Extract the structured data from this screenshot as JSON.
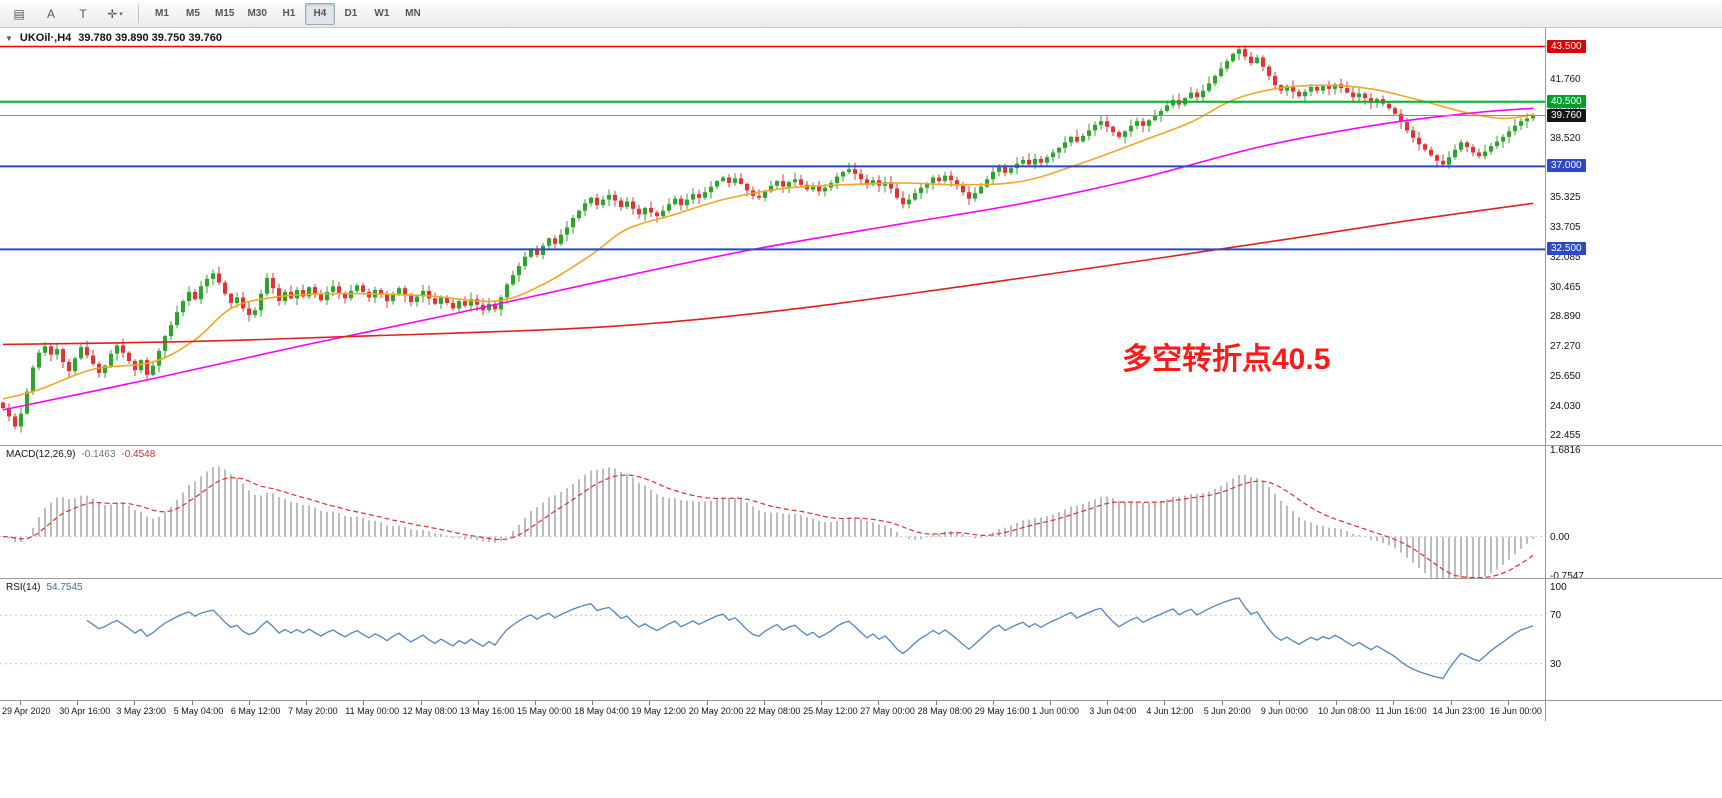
{
  "toolbar": {
    "icons": [
      {
        "name": "chart-list-icon",
        "glyph": "▤"
      },
      {
        "name": "text-tool-icon",
        "glyph": "A"
      },
      {
        "name": "template-tool-icon",
        "glyph": "T"
      },
      {
        "name": "crosshair-tool-icon",
        "glyph": "✛",
        "caret": "▾"
      }
    ],
    "timeframes": [
      "M1",
      "M5",
      "M15",
      "M30",
      "H1",
      "H4",
      "D1",
      "W1",
      "MN"
    ],
    "active_timeframe": "H4"
  },
  "chart_header": {
    "collapse_glyph": "▼",
    "symbol": "UKOil·,H4",
    "ohlc": "39.780 39.890 39.750 39.760"
  },
  "annotation": {
    "text": "多空转折点40.5",
    "color": "#FF1A1A"
  },
  "macd_panel": {
    "label": "MACD(12,26,9)",
    "value_main": "-0.1463",
    "value_signal": "-0.4548",
    "axis": [
      {
        "value": 1.6816,
        "label": "1.6816"
      },
      {
        "value": 0,
        "label": "0.00"
      },
      {
        "value": -0.7547,
        "label": "-0.7547"
      }
    ],
    "range": [
      -0.8,
      1.75
    ],
    "histogram_color": "#BDBDBD",
    "signal_color": "#E03030"
  },
  "rsi_panel": {
    "label": "RSI(14)",
    "value": "54.7545",
    "axis": [
      {
        "value": 100,
        "label": "100"
      },
      {
        "value": 70,
        "label": "70"
      },
      {
        "value": 30,
        "label": "30"
      }
    ],
    "levels": [
      30,
      70
    ],
    "line_color": "#4E86C8",
    "range": [
      0,
      100
    ]
  },
  "chart_data": {
    "type": "candlestick",
    "symbol": "UKOil",
    "timeframe": "H4",
    "title": "UKOil·,H4 39.780 39.890 39.750 39.760",
    "price_range": [
      21.9,
      44.5
    ],
    "up_color": "#2DA52D",
    "down_color": "#E33232",
    "closes": [
      23.9,
      23.45,
      22.9,
      23.6,
      24.8,
      26.1,
      26.9,
      27.25,
      26.8,
      27.1,
      26.4,
      25.9,
      26.6,
      27.2,
      26.75,
      26.3,
      25.8,
      26.2,
      26.85,
      27.3,
      26.9,
      26.45,
      25.95,
      26.5,
      25.7,
      26.2,
      27.0,
      27.8,
      28.4,
      29.1,
      29.7,
      30.2,
      29.8,
      30.5,
      30.9,
      31.2,
      30.7,
      30.1,
      29.6,
      29.9,
      29.3,
      28.95,
      29.2,
      30.1,
      30.95,
      30.4,
      29.7,
      30.2,
      29.85,
      30.3,
      29.95,
      30.45,
      30.1,
      29.75,
      30.2,
      30.5,
      30.15,
      29.85,
      30.25,
      30.55,
      30.2,
      29.9,
      30.3,
      30.05,
      29.7,
      30.1,
      30.4,
      30.0,
      29.65,
      29.95,
      30.25,
      29.85,
      29.55,
      29.9,
      29.6,
      29.3,
      29.7,
      29.45,
      29.8,
      29.5,
      29.2,
      29.55,
      29.25,
      29.9,
      30.6,
      31.1,
      31.6,
      32.1,
      32.5,
      32.2,
      32.7,
      33.1,
      32.8,
      33.3,
      33.7,
      34.2,
      34.6,
      35.0,
      35.3,
      34.9,
      35.2,
      35.45,
      35.15,
      34.8,
      35.1,
      34.7,
      34.4,
      34.75,
      34.5,
      34.3,
      34.6,
      34.95,
      35.25,
      34.9,
      35.2,
      35.5,
      35.3,
      35.6,
      35.9,
      36.2,
      36.4,
      36.1,
      36.35,
      36.05,
      35.7,
      35.4,
      35.3,
      35.65,
      35.95,
      36.2,
      35.9,
      36.15,
      36.3,
      36.0,
      35.75,
      35.95,
      35.65,
      35.85,
      36.1,
      36.45,
      36.7,
      36.85,
      36.6,
      36.3,
      36.0,
      36.25,
      35.95,
      36.15,
      35.8,
      35.3,
      34.95,
      35.2,
      35.55,
      35.85,
      36.1,
      36.4,
      36.2,
      36.5,
      36.25,
      35.95,
      35.6,
      35.25,
      35.55,
      35.9,
      36.3,
      36.7,
      36.95,
      36.65,
      36.9,
      37.15,
      37.35,
      37.1,
      37.4,
      37.2,
      37.5,
      37.75,
      38.0,
      38.3,
      38.6,
      38.35,
      38.65,
      38.95,
      39.25,
      39.45,
      39.15,
      38.85,
      38.6,
      38.9,
      39.2,
      39.45,
      39.2,
      39.5,
      39.75,
      40.0,
      40.3,
      40.6,
      40.35,
      40.7,
      41.0,
      40.75,
      41.1,
      41.5,
      41.9,
      42.3,
      42.7,
      43.1,
      43.35,
      42.95,
      42.6,
      42.9,
      42.4,
      41.9,
      41.4,
      41.1,
      41.35,
      41.05,
      40.8,
      41.05,
      41.3,
      41.1,
      41.35,
      41.2,
      41.45,
      41.25,
      41.0,
      40.75,
      40.95,
      40.7,
      40.45,
      40.65,
      40.4,
      40.15,
      39.85,
      39.4,
      38.95,
      38.55,
      38.2,
      37.9,
      37.6,
      37.3,
      37.1,
      37.5,
      37.9,
      38.3,
      38.05,
      37.75,
      37.55,
      37.8,
      38.1,
      38.35,
      38.6,
      38.9,
      39.2,
      39.45,
      39.6,
      39.76
    ],
    "moving_averages": [
      {
        "name": "fast-ma",
        "color": "#F5A623",
        "anchors": [
          [
            0,
            24.4
          ],
          [
            6,
            24.9
          ],
          [
            15,
            26.0
          ],
          [
            25,
            26.4
          ],
          [
            32,
            27.6
          ],
          [
            38,
            29.3
          ],
          [
            45,
            29.9
          ],
          [
            55,
            30.1
          ],
          [
            70,
            30.0
          ],
          [
            82,
            29.7
          ],
          [
            90,
            30.6
          ],
          [
            98,
            32.2
          ],
          [
            104,
            33.6
          ],
          [
            112,
            34.4
          ],
          [
            120,
            35.2
          ],
          [
            130,
            35.8
          ],
          [
            140,
            36.0
          ],
          [
            150,
            36.1
          ],
          [
            160,
            36.0
          ],
          [
            170,
            36.2
          ],
          [
            180,
            37.2
          ],
          [
            190,
            38.4
          ],
          [
            198,
            39.4
          ],
          [
            205,
            40.6
          ],
          [
            212,
            41.2
          ],
          [
            220,
            41.4
          ],
          [
            228,
            41.2
          ],
          [
            236,
            40.6
          ],
          [
            244,
            39.9
          ],
          [
            250,
            39.6
          ],
          [
            255,
            39.8
          ]
        ]
      },
      {
        "name": "mid-ma",
        "color": "#FF00FF",
        "anchors": [
          [
            0,
            23.8
          ],
          [
            25,
            25.5
          ],
          [
            50,
            27.3
          ],
          [
            75,
            29.0
          ],
          [
            100,
            30.8
          ],
          [
            125,
            32.5
          ],
          [
            150,
            33.9
          ],
          [
            170,
            35.0
          ],
          [
            190,
            36.4
          ],
          [
            210,
            38.1
          ],
          [
            230,
            39.3
          ],
          [
            245,
            39.9
          ],
          [
            255,
            40.15
          ]
        ]
      },
      {
        "name": "slow-ma",
        "color": "#E02020",
        "anchors": [
          [
            0,
            27.35
          ],
          [
            30,
            27.5
          ],
          [
            60,
            27.8
          ],
          [
            100,
            28.3
          ],
          [
            130,
            29.2
          ],
          [
            160,
            30.5
          ],
          [
            190,
            31.9
          ],
          [
            215,
            33.1
          ],
          [
            235,
            34.1
          ],
          [
            255,
            35.0
          ]
        ]
      }
    ],
    "hlines": [
      {
        "price": 43.5,
        "color": "#FF0000",
        "width": 1.4,
        "badge": "43.500",
        "badge_bg": "#E00000"
      },
      {
        "price": 40.5,
        "color": "#00B02D",
        "width": 2,
        "badge": "40.500",
        "badge_bg": "#00A02A"
      },
      {
        "price": 39.76,
        "color": "#8C8C8C",
        "width": 1,
        "badge": "39.760",
        "badge_bg": "#141414"
      },
      {
        "price": 37.0,
        "color": "#2E48C8",
        "width": 2,
        "badge": "37.000",
        "badge_bg": "#2E48C8"
      },
      {
        "price": 32.5,
        "color": "#2E48C8",
        "width": 2,
        "badge": "32.500",
        "badge_bg": "#2E48C8"
      }
    ],
    "price_ticks": [
      "41.760",
      "40.140",
      "38.520",
      "35.325",
      "33.705",
      "32.085",
      "30.465",
      "28.890",
      "27.270",
      "25.650",
      "24.030",
      "22.455"
    ],
    "x_labels": [
      "29 Apr 2020",
      "30 Apr 16:00",
      "3 May 23:00",
      "5 May 04:00",
      "6 May 12:00",
      "7 May 20:00",
      "11 May 00:00",
      "12 May 08:00",
      "13 May 16:00",
      "15 May 00:00",
      "18 May 04:00",
      "19 May 12:00",
      "20 May 20:00",
      "22 May 08:00",
      "25 May 12:00",
      "27 May 00:00",
      "28 May 08:00",
      "29 May 16:00",
      "1 Jun 00:00",
      "3 Jun 04:00",
      "4 Jun 12:00",
      "5 Jun 20:00",
      "9 Jun 00:00",
      "10 Jun 08:00",
      "11 Jun 16:00",
      "14 Jun 23:00",
      "16 Jun 00:00"
    ]
  }
}
